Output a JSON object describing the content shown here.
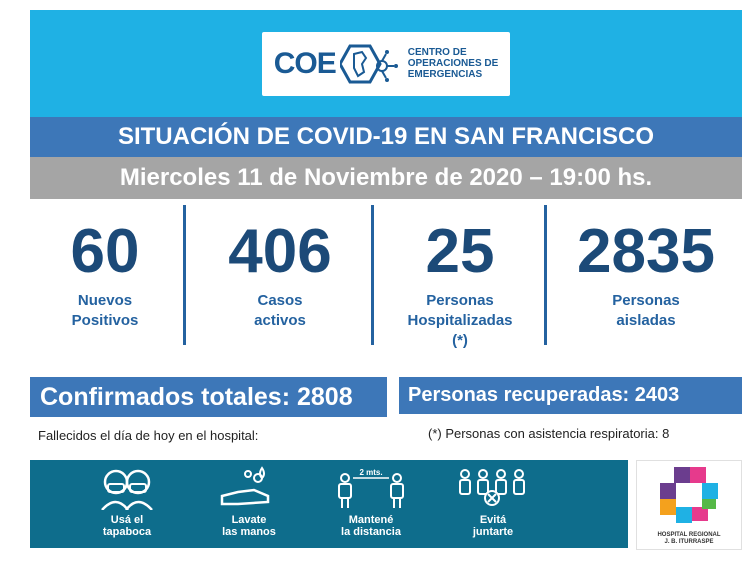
{
  "header": {
    "logo_text": "COE",
    "org_line1": "CENTRO DE",
    "org_line2": "OPERACIONES DE",
    "org_line3": "EMERGENCIAS"
  },
  "title": "SITUACIÓN DE COVID-19 EN SAN FRANCISCO",
  "date": "Miercoles 11 de Noviembre de 2020 – 19:00 hs.",
  "stats": [
    {
      "value": "60",
      "label": "Nuevos\nPositivos"
    },
    {
      "value": "406",
      "label": "Casos\nactivos"
    },
    {
      "value": "25",
      "label": "Personas\nHospitalizadas\n(*)"
    },
    {
      "value": "2835",
      "label": "Personas\naisladas"
    }
  ],
  "confirmed": {
    "label": "Confirmados totales: ",
    "value": "2808"
  },
  "recovered": {
    "label": "Personas recuperadas: ",
    "value": "2403"
  },
  "note_left": "Fallecidos el día de hoy en el hospital:",
  "note_right": "(*) Personas con asistencia respiratoria: 8",
  "prevention": [
    {
      "icon": "mask-icon",
      "label": "Usá el\ntapaboca"
    },
    {
      "icon": "hand-wash-icon",
      "label": "Lavate\nlas manos"
    },
    {
      "icon": "distance-icon",
      "label": "Mantené\nla distancia",
      "sublabel": "2 mts."
    },
    {
      "icon": "no-crowd-icon",
      "label": "Evitá\njuntarte"
    }
  ],
  "hospital": {
    "name_line1": "HOSPITAL REGIONAL",
    "name_line2": "J. B. ITURRASPE"
  },
  "colors": {
    "header_bg": "#1fb1e4",
    "title_bg": "#3d77b8",
    "date_bg": "#a5a5a5",
    "number_color": "#1c4a78",
    "prevention_bg": "#0e6d8c"
  }
}
